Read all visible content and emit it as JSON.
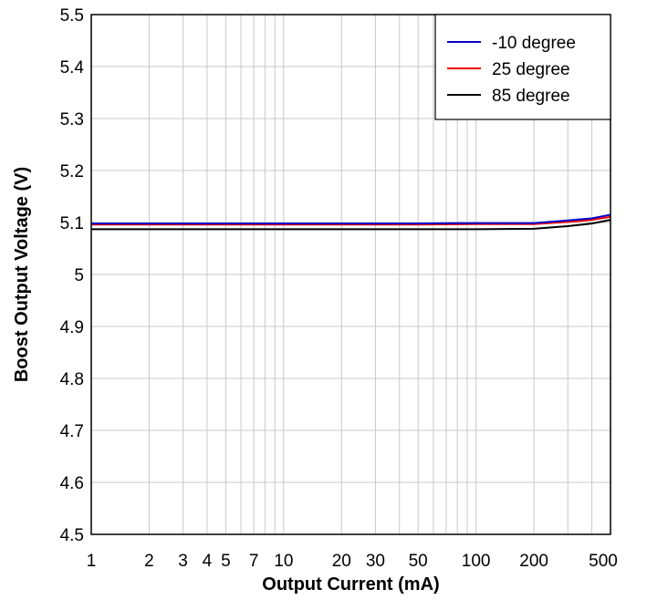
{
  "chart_data": {
    "type": "line",
    "xlabel": "Output Current (mA)",
    "ylabel": "Boost Output Voltage (V)",
    "x_scale": "log",
    "xlim": [
      1,
      500
    ],
    "ylim": [
      4.5,
      5.5
    ],
    "grid": true,
    "legend_position": "top-right",
    "x_tick_values": [
      1,
      2,
      3,
      4,
      5,
      7,
      10,
      20,
      30,
      50,
      100,
      200,
      500
    ],
    "x_tick_labels": [
      "1",
      "2",
      "3",
      "4",
      "5",
      "7",
      "10",
      "20",
      "30",
      "50",
      "100",
      "200",
      "500"
    ],
    "y_tick_values": [
      4.5,
      4.6,
      4.7,
      4.8,
      4.9,
      5.0,
      5.1,
      5.2,
      5.3,
      5.4,
      5.5
    ],
    "y_tick_labels": [
      "4.5",
      "4.6",
      "4.7",
      "4.8",
      "4.9",
      "5",
      "5.1",
      "5.2",
      "5.3",
      "5.4",
      "5.5"
    ],
    "series": [
      {
        "name": "-10 degree",
        "color": "#0000cc",
        "points": [
          [
            1,
            5.098
          ],
          [
            10,
            5.098
          ],
          [
            50,
            5.098
          ],
          [
            100,
            5.099
          ],
          [
            200,
            5.099
          ],
          [
            300,
            5.104
          ],
          [
            400,
            5.108
          ],
          [
            500,
            5.115
          ]
        ]
      },
      {
        "name": "25 degree",
        "color": "#ee0000",
        "points": [
          [
            1,
            5.096
          ],
          [
            10,
            5.096
          ],
          [
            50,
            5.096
          ],
          [
            100,
            5.097
          ],
          [
            200,
            5.097
          ],
          [
            300,
            5.101
          ],
          [
            400,
            5.105
          ],
          [
            500,
            5.111
          ]
        ]
      },
      {
        "name": "85 degree",
        "color": "#000000",
        "points": [
          [
            1,
            5.087
          ],
          [
            10,
            5.087
          ],
          [
            50,
            5.087
          ],
          [
            100,
            5.087
          ],
          [
            200,
            5.088
          ],
          [
            300,
            5.093
          ],
          [
            400,
            5.098
          ],
          [
            500,
            5.105
          ]
        ]
      }
    ]
  }
}
